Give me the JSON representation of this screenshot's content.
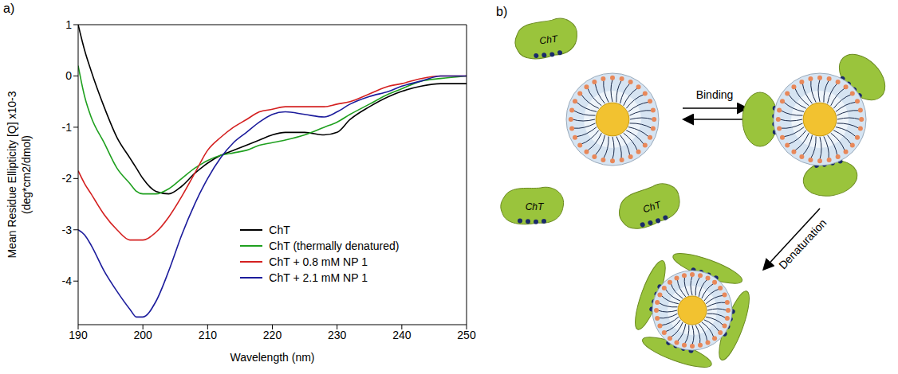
{
  "chart_data": {
    "type": "line",
    "panel": "a)",
    "x_label": "Wavelength (nm)",
    "y_label": [
      "Mean Residue Ellipticity [Q] x10-3",
      "(deg*cm2/dmol)"
    ],
    "x": [
      190,
      191,
      192,
      194,
      196,
      198,
      199,
      200,
      202,
      204,
      206,
      208,
      210,
      212,
      214,
      216,
      218,
      220,
      222,
      225,
      228,
      230,
      232,
      235,
      238,
      240,
      243,
      246,
      250
    ],
    "series": [
      {
        "name": "ChT",
        "color": "#000000",
        "values": [
          1.0,
          0.5,
          0.1,
          -0.6,
          -1.2,
          -1.6,
          -1.8,
          -2.0,
          -2.25,
          -2.3,
          -2.15,
          -1.9,
          -1.7,
          -1.55,
          -1.45,
          -1.35,
          -1.25,
          -1.15,
          -1.1,
          -1.1,
          -1.15,
          -1.1,
          -0.85,
          -0.6,
          -0.4,
          -0.3,
          -0.2,
          -0.15,
          -0.15
        ]
      },
      {
        "name": "ChT (thermally denatured)",
        "color": "#1fa01f",
        "values": [
          0.2,
          -0.4,
          -0.8,
          -1.3,
          -1.8,
          -2.1,
          -2.25,
          -2.3,
          -2.3,
          -2.2,
          -2.0,
          -1.8,
          -1.65,
          -1.55,
          -1.5,
          -1.45,
          -1.35,
          -1.3,
          -1.25,
          -1.15,
          -1.0,
          -0.9,
          -0.75,
          -0.55,
          -0.35,
          -0.25,
          -0.1,
          -0.05,
          0
        ]
      },
      {
        "name": "ChT + 0.8 mM NP 1",
        "color": "#d42020",
        "values": [
          -1.85,
          -2.1,
          -2.3,
          -2.7,
          -3.0,
          -3.2,
          -3.2,
          -3.2,
          -3.05,
          -2.75,
          -2.35,
          -1.9,
          -1.45,
          -1.2,
          -1.0,
          -0.85,
          -0.7,
          -0.65,
          -0.6,
          -0.6,
          -0.6,
          -0.55,
          -0.5,
          -0.35,
          -0.2,
          -0.15,
          -0.05,
          0,
          0
        ]
      },
      {
        "name": "ChT + 2.1 mM NP 1",
        "color": "#1c1c9c",
        "values": [
          -3.0,
          -3.1,
          -3.3,
          -3.8,
          -4.2,
          -4.55,
          -4.7,
          -4.7,
          -4.4,
          -3.8,
          -3.1,
          -2.5,
          -2.0,
          -1.6,
          -1.3,
          -1.1,
          -0.9,
          -0.75,
          -0.7,
          -0.75,
          -0.8,
          -0.7,
          -0.55,
          -0.4,
          -0.3,
          -0.2,
          -0.1,
          0,
          0
        ]
      }
    ],
    "xlim": [
      190,
      250
    ],
    "xticks": [
      190,
      200,
      210,
      220,
      230,
      240,
      250
    ],
    "ylim": [
      -4.85,
      1
    ],
    "yticks": [
      -4,
      -3,
      -2,
      -1,
      0,
      1
    ],
    "grid": false,
    "legend": "lower right"
  },
  "diagram": {
    "panel": "b)",
    "free_proteins": [
      "ChT",
      "ChT",
      "ChT"
    ],
    "arrows": [
      "Binding",
      "Denaturation"
    ]
  }
}
